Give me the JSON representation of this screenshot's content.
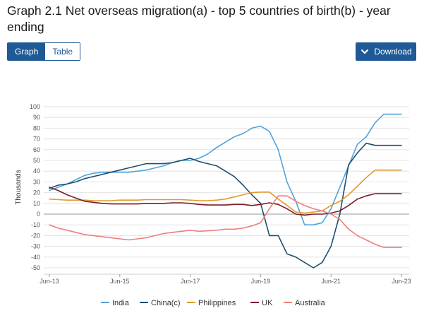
{
  "page": {
    "title": "Graph 2.1 Net overseas migration(a) - top 5 countries of birth(b) - year ending"
  },
  "toggle": {
    "graph_label": "Graph",
    "table_label": "Table"
  },
  "download": {
    "label": "Download",
    "icon": "chevron-down-icon"
  },
  "colors": {
    "India": "#4fa3d9",
    "China(c)": "#1f4e6e",
    "Philippines": "#e09a2c",
    "UK": "#7a1c2a",
    "Australia": "#ee7f7a",
    "accent": "#1f5a96"
  },
  "chart_data": {
    "type": "line",
    "title": "Graph 2.1 Net overseas migration(a) - top 5 countries of birth(b) - year ending",
    "xlabel": "",
    "ylabel": "Thousands",
    "ylim": [
      -55,
      100
    ],
    "yticks": [
      100,
      90,
      80,
      70,
      60,
      50,
      40,
      30,
      20,
      10,
      0,
      -10,
      -20,
      -30,
      -40,
      -50
    ],
    "xlim": [
      0,
      40
    ],
    "xticks": [
      {
        "x": 0,
        "label": "Jun-13"
      },
      {
        "x": 8,
        "label": "Jun-15"
      },
      {
        "x": 16,
        "label": "Jun-17"
      },
      {
        "x": 24,
        "label": "Jun-19"
      },
      {
        "x": 32,
        "label": "Jun-21"
      },
      {
        "x": 40,
        "label": "Jun-23"
      }
    ],
    "x_unit": "quarters",
    "grid": "horizontal",
    "legend_position": "bottom",
    "series": [
      {
        "name": "India",
        "values": [
          22,
          25,
          28,
          32,
          36,
          38,
          39,
          39,
          39,
          39,
          40,
          41,
          43,
          45,
          48,
          50,
          50,
          52,
          56,
          62,
          67,
          72,
          75,
          80,
          82,
          77,
          60,
          30,
          12,
          -10,
          -10,
          -8,
          5,
          25,
          45,
          65,
          72,
          85,
          93,
          93,
          93
        ]
      },
      {
        "name": "China(c)",
        "values": [
          24,
          27,
          28,
          30,
          33,
          35,
          37,
          39,
          41,
          43,
          45,
          47,
          47,
          47,
          48,
          50,
          52,
          49,
          47,
          45,
          40,
          35,
          27,
          18,
          10,
          -20,
          -20,
          -37,
          -40,
          -45,
          -50,
          -45,
          -30,
          0,
          46,
          57,
          66,
          64,
          64,
          64,
          64
        ]
      },
      {
        "name": "Philippines",
        "values": [
          14,
          13.5,
          13,
          13,
          13,
          12.5,
          12.5,
          12.5,
          13,
          13,
          13,
          13.5,
          13.5,
          13.5,
          13.5,
          13.5,
          13,
          12.5,
          12.5,
          13,
          14,
          16,
          18,
          20,
          20.5,
          20.5,
          14,
          8,
          2,
          1,
          2,
          3,
          8,
          12,
          18,
          26,
          34,
          41,
          41,
          41,
          41
        ]
      },
      {
        "name": "UK",
        "values": [
          25,
          22,
          18,
          15,
          12,
          11,
          10,
          9.5,
          9.5,
          9.5,
          9.5,
          10,
          10,
          10,
          10.5,
          10.5,
          10,
          9,
          8.5,
          8.5,
          8.5,
          9,
          9,
          8,
          9,
          10.5,
          9,
          5,
          0,
          -1,
          0,
          0,
          1,
          3,
          8,
          14,
          17,
          19,
          19,
          19,
          19
        ]
      },
      {
        "name": "Australia",
        "values": [
          -10,
          -13,
          -15,
          -17,
          -19,
          -20,
          -21,
          -22,
          -23,
          -24,
          -23,
          -22,
          -20,
          -18,
          -17,
          -16,
          -15,
          -16,
          -15.5,
          -15,
          -14,
          -14,
          -13,
          -11,
          -8,
          5,
          17,
          17,
          12,
          8,
          5,
          3,
          0,
          -5,
          -14,
          -20,
          -24,
          -28,
          -31,
          -31,
          -31
        ]
      },
      {
        "name": "_pad",
        "values": []
      }
    ]
  },
  "legend": [
    {
      "label": "India"
    },
    {
      "label": "China(c)"
    },
    {
      "label": "Philippines"
    },
    {
      "label": "UK"
    },
    {
      "label": "Australia"
    }
  ]
}
